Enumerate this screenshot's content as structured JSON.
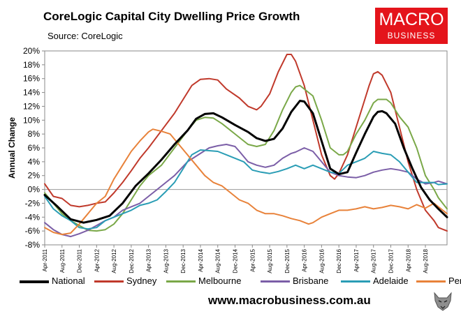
{
  "title": "CoreLogic Capital City Dwelling Price Growth",
  "source": "Source: CoreLogic",
  "brand": {
    "line1": "MACRO",
    "line2": "BUSINESS",
    "color": "#e4141b",
    "icon": "wolf-icon"
  },
  "footer_url": "www.macrobusiness.com.au",
  "chart_data": {
    "type": "line",
    "ylabel": "Annual Change",
    "ylim": [
      -8,
      20
    ],
    "yticks": [
      20,
      18,
      16,
      14,
      12,
      10,
      8,
      6,
      4,
      2,
      0,
      -2,
      -4,
      -6,
      -8
    ],
    "ytick_labels": [
      "20%",
      "18%",
      "16%",
      "14%",
      "12%",
      "10%",
      "8%",
      "6%",
      "4%",
      "2%",
      "0%",
      "-2%",
      "-4%",
      "-6%",
      "-8%"
    ],
    "x_range": [
      0,
      93
    ],
    "xticks": [
      0,
      4,
      8,
      12,
      16,
      20,
      24,
      28,
      32,
      36,
      40,
      44,
      48,
      52,
      56,
      60,
      64,
      68,
      72,
      76,
      80,
      84,
      88
    ],
    "xtick_labels": [
      "Apr-2011",
      "Aug-2011",
      "Dec-2011",
      "Apr-2012",
      "Aug-2012",
      "Dec-2012",
      "Apr-2013",
      "Aug-2013",
      "Dec-2013",
      "Apr-2014",
      "Aug-2014",
      "Dec-2014",
      "Apr-2015",
      "Aug-2015",
      "Dec-2015",
      "Apr-2016",
      "Aug-2016",
      "Dec-2016",
      "Apr-2017",
      "Aug-2017",
      "Dec-2017",
      "Apr-2018",
      "Aug-2018"
    ],
    "x_unit": "months since Apr-2011",
    "series": [
      {
        "name": "National",
        "color": "#000000",
        "width": 3,
        "points": [
          [
            0,
            -0.8
          ],
          [
            3,
            -2.5
          ],
          [
            6,
            -4.3
          ],
          [
            9,
            -4.8
          ],
          [
            12,
            -4.4
          ],
          [
            15,
            -3.8
          ],
          [
            18,
            -2
          ],
          [
            21,
            0.5
          ],
          [
            24,
            2.3
          ],
          [
            27,
            4.3
          ],
          [
            30,
            6.5
          ],
          [
            33,
            8.5
          ],
          [
            35,
            10.2
          ],
          [
            37,
            10.9
          ],
          [
            39,
            11
          ],
          [
            41,
            10.4
          ],
          [
            44,
            9.3
          ],
          [
            47,
            8.3
          ],
          [
            49,
            7.4
          ],
          [
            51,
            7
          ],
          [
            53,
            7.3
          ],
          [
            55,
            8.8
          ],
          [
            57,
            11.2
          ],
          [
            59,
            12.8
          ],
          [
            60,
            12.7
          ],
          [
            62,
            11
          ],
          [
            64,
            7
          ],
          [
            66,
            3
          ],
          [
            68,
            2.2
          ],
          [
            70,
            2.5
          ],
          [
            72,
            5.3
          ],
          [
            74,
            8
          ],
          [
            76,
            10.5
          ],
          [
            77,
            11.2
          ],
          [
            78,
            11.3
          ],
          [
            79,
            11
          ],
          [
            81,
            9.5
          ],
          [
            83,
            6
          ],
          [
            85,
            3
          ],
          [
            87,
            0.3
          ],
          [
            89,
            -1.5
          ],
          [
            91,
            -2.8
          ],
          [
            93,
            -4
          ]
        ]
      },
      {
        "name": "Sydney",
        "color": "#c0392b",
        "width": 2,
        "points": [
          [
            0,
            0.8
          ],
          [
            2,
            -1
          ],
          [
            4,
            -1.3
          ],
          [
            6,
            -2.3
          ],
          [
            8,
            -2.5
          ],
          [
            10,
            -2.3
          ],
          [
            12,
            -2
          ],
          [
            14,
            -1.8
          ],
          [
            16,
            -0.5
          ],
          [
            18,
            1
          ],
          [
            20,
            2.7
          ],
          [
            22,
            4.5
          ],
          [
            24,
            6
          ],
          [
            27,
            8.5
          ],
          [
            30,
            11
          ],
          [
            32,
            13
          ],
          [
            34,
            15
          ],
          [
            36,
            15.9
          ],
          [
            38,
            16
          ],
          [
            40,
            15.8
          ],
          [
            42,
            14.5
          ],
          [
            45,
            13.2
          ],
          [
            47,
            12
          ],
          [
            49,
            11.5
          ],
          [
            50,
            12
          ],
          [
            52,
            13.8
          ],
          [
            54,
            17
          ],
          [
            56,
            19.5
          ],
          [
            57,
            19.5
          ],
          [
            58,
            18.5
          ],
          [
            60,
            15
          ],
          [
            62,
            10
          ],
          [
            64,
            5
          ],
          [
            66,
            2
          ],
          [
            67,
            1.5
          ],
          [
            68,
            2.3
          ],
          [
            70,
            5
          ],
          [
            72,
            9
          ],
          [
            74,
            13
          ],
          [
            75,
            15
          ],
          [
            76,
            16.7
          ],
          [
            77,
            17
          ],
          [
            78,
            16.5
          ],
          [
            80,
            14
          ],
          [
            82,
            9
          ],
          [
            84,
            4
          ],
          [
            86,
            0
          ],
          [
            88,
            -3
          ],
          [
            90,
            -4.5
          ],
          [
            91,
            -5.5
          ],
          [
            93,
            -6
          ]
        ]
      },
      {
        "name": "Melbourne",
        "color": "#7aa848",
        "width": 2,
        "points": [
          [
            0,
            -0.5
          ],
          [
            2,
            -2
          ],
          [
            4,
            -3.5
          ],
          [
            6,
            -4.5
          ],
          [
            8,
            -5.2
          ],
          [
            10,
            -5.9
          ],
          [
            12,
            -6
          ],
          [
            14,
            -5.8
          ],
          [
            16,
            -5
          ],
          [
            18,
            -3.5
          ],
          [
            20,
            -1.5
          ],
          [
            22,
            0.5
          ],
          [
            24,
            2
          ],
          [
            27,
            3.5
          ],
          [
            30,
            6
          ],
          [
            33,
            8.5
          ],
          [
            35,
            10
          ],
          [
            37,
            10.4
          ],
          [
            39,
            10.3
          ],
          [
            41,
            9.5
          ],
          [
            44,
            8
          ],
          [
            47,
            6.5
          ],
          [
            49,
            6.2
          ],
          [
            51,
            6.5
          ],
          [
            53,
            8.5
          ],
          [
            55,
            11.5
          ],
          [
            57,
            14
          ],
          [
            58,
            14.8
          ],
          [
            59,
            15
          ],
          [
            61,
            14
          ],
          [
            62,
            13.5
          ],
          [
            64,
            10
          ],
          [
            66,
            6
          ],
          [
            68,
            5
          ],
          [
            69,
            5
          ],
          [
            70,
            5.5
          ],
          [
            72,
            8
          ],
          [
            74,
            10
          ],
          [
            76,
            12.5
          ],
          [
            77,
            13
          ],
          [
            78,
            13
          ],
          [
            79,
            13
          ],
          [
            80,
            12.5
          ],
          [
            82,
            10.5
          ],
          [
            84,
            9
          ],
          [
            86,
            6
          ],
          [
            88,
            2
          ],
          [
            90,
            0
          ],
          [
            91,
            -1.2
          ],
          [
            93,
            -2.8
          ]
        ]
      },
      {
        "name": "Brisbane",
        "color": "#7b5ea7",
        "width": 2,
        "points": [
          [
            0,
            -4.8
          ],
          [
            2,
            -5.8
          ],
          [
            4,
            -6.5
          ],
          [
            6,
            -6.8
          ],
          [
            8,
            -6.4
          ],
          [
            10,
            -5.9
          ],
          [
            12,
            -5.2
          ],
          [
            14,
            -4.5
          ],
          [
            16,
            -4
          ],
          [
            18,
            -3
          ],
          [
            20,
            -2.5
          ],
          [
            22,
            -2
          ],
          [
            24,
            -1
          ],
          [
            26,
            0
          ],
          [
            28,
            1
          ],
          [
            30,
            2
          ],
          [
            33,
            4
          ],
          [
            36,
            5.2
          ],
          [
            38,
            6
          ],
          [
            40,
            6.3
          ],
          [
            42,
            6.5
          ],
          [
            44,
            6.2
          ],
          [
            45,
            5.5
          ],
          [
            47,
            4
          ],
          [
            49,
            3.5
          ],
          [
            51,
            3.2
          ],
          [
            53,
            3.5
          ],
          [
            55,
            4.5
          ],
          [
            57,
            5.2
          ],
          [
            58,
            5.4
          ],
          [
            60,
            6
          ],
          [
            62,
            5.5
          ],
          [
            64,
            4
          ],
          [
            66,
            2.5
          ],
          [
            68,
            2
          ],
          [
            70,
            1.8
          ],
          [
            72,
            1.7
          ],
          [
            74,
            2
          ],
          [
            76,
            2.5
          ],
          [
            78,
            2.8
          ],
          [
            80,
            3
          ],
          [
            82,
            2.8
          ],
          [
            84,
            2.5
          ],
          [
            86,
            1.5
          ],
          [
            88,
            0.8
          ],
          [
            90,
            1
          ],
          [
            91,
            1.2
          ],
          [
            93,
            0.8
          ]
        ]
      },
      {
        "name": "Adelaide",
        "color": "#2a9db5",
        "width": 2,
        "points": [
          [
            0,
            -1
          ],
          [
            2,
            -2.8
          ],
          [
            4,
            -3.8
          ],
          [
            6,
            -4.5
          ],
          [
            8,
            -5.5
          ],
          [
            10,
            -5.7
          ],
          [
            12,
            -5.5
          ],
          [
            14,
            -4.5
          ],
          [
            16,
            -4
          ],
          [
            18,
            -3.5
          ],
          [
            20,
            -3
          ],
          [
            22,
            -2.3
          ],
          [
            24,
            -2
          ],
          [
            26,
            -1.5
          ],
          [
            28,
            -0.3
          ],
          [
            30,
            1
          ],
          [
            32,
            3
          ],
          [
            34,
            5
          ],
          [
            36,
            5.7
          ],
          [
            38,
            5.6
          ],
          [
            40,
            5.5
          ],
          [
            42,
            5
          ],
          [
            44,
            4.5
          ],
          [
            46,
            4
          ],
          [
            48,
            2.8
          ],
          [
            50,
            2.5
          ],
          [
            52,
            2.3
          ],
          [
            54,
            2.6
          ],
          [
            56,
            3
          ],
          [
            58,
            3.5
          ],
          [
            60,
            3
          ],
          [
            62,
            3.5
          ],
          [
            64,
            3
          ],
          [
            66,
            2.5
          ],
          [
            68,
            2.3
          ],
          [
            70,
            3.5
          ],
          [
            72,
            4
          ],
          [
            74,
            4.5
          ],
          [
            76,
            5.5
          ],
          [
            78,
            5.2
          ],
          [
            80,
            5
          ],
          [
            82,
            4
          ],
          [
            84,
            2.5
          ],
          [
            86,
            1
          ],
          [
            88,
            1
          ],
          [
            90,
            1
          ],
          [
            91,
            0.7
          ],
          [
            93,
            0.8
          ]
        ]
      },
      {
        "name": "Perth",
        "color": "#e8823a",
        "width": 2,
        "points": [
          [
            0,
            -5.5
          ],
          [
            2,
            -6.2
          ],
          [
            4,
            -6.5
          ],
          [
            6,
            -6.3
          ],
          [
            8,
            -5
          ],
          [
            10,
            -3.5
          ],
          [
            12,
            -2
          ],
          [
            14,
            -1
          ],
          [
            16,
            1.5
          ],
          [
            18,
            3.5
          ],
          [
            20,
            5.5
          ],
          [
            22,
            7
          ],
          [
            24,
            8.3
          ],
          [
            25,
            8.7
          ],
          [
            27,
            8.4
          ],
          [
            29,
            8
          ],
          [
            31,
            6.5
          ],
          [
            33,
            5
          ],
          [
            35,
            3.5
          ],
          [
            37,
            2
          ],
          [
            39,
            1
          ],
          [
            41,
            0.5
          ],
          [
            43,
            -0.5
          ],
          [
            45,
            -1.5
          ],
          [
            47,
            -2
          ],
          [
            49,
            -3
          ],
          [
            51,
            -3.5
          ],
          [
            53,
            -3.5
          ],
          [
            55,
            -3.8
          ],
          [
            57,
            -4.2
          ],
          [
            59,
            -4.5
          ],
          [
            61,
            -5
          ],
          [
            62,
            -4.8
          ],
          [
            64,
            -4
          ],
          [
            66,
            -3.5
          ],
          [
            68,
            -3
          ],
          [
            70,
            -3
          ],
          [
            72,
            -2.8
          ],
          [
            74,
            -2.5
          ],
          [
            76,
            -2.8
          ],
          [
            78,
            -2.6
          ],
          [
            80,
            -2.3
          ],
          [
            82,
            -2.5
          ],
          [
            84,
            -2.8
          ],
          [
            86,
            -2.2
          ],
          [
            88,
            -2.7
          ],
          [
            90,
            -2
          ],
          [
            91,
            -2.5
          ],
          [
            93,
            -3.5
          ]
        ]
      }
    ],
    "legend_position": "bottom"
  }
}
